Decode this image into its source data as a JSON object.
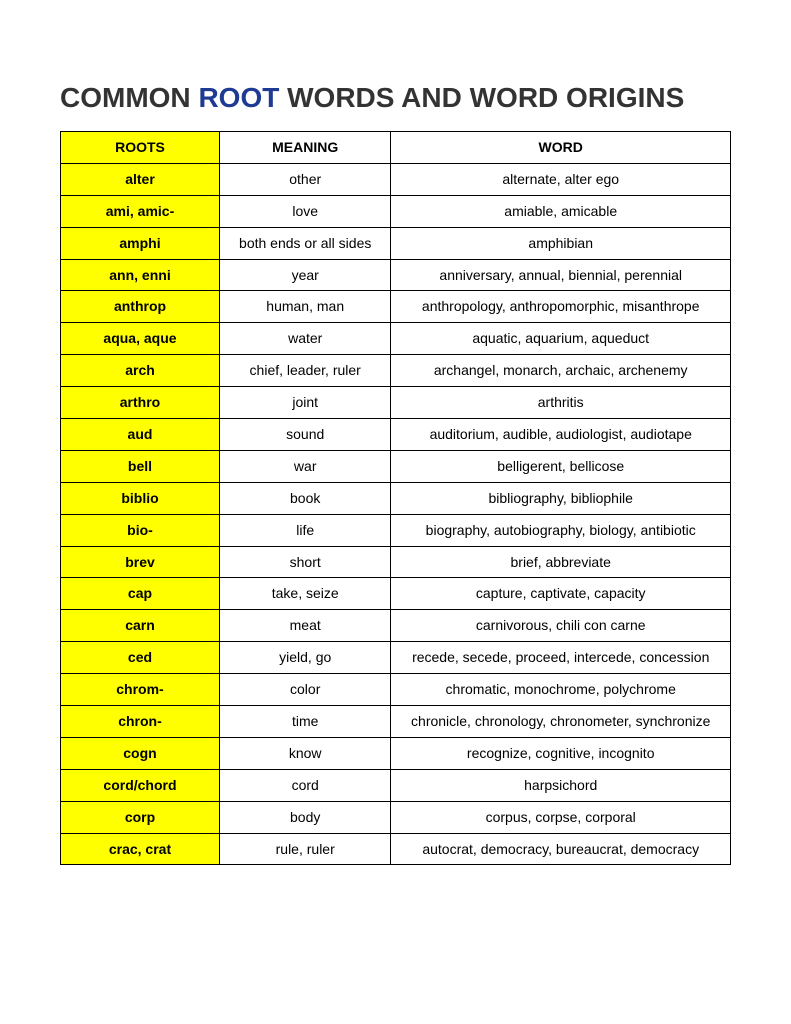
{
  "title": {
    "pre": "COMMON ",
    "accent": "ROOT",
    "post": " WORDS AND WORD ORIGINS"
  },
  "colors": {
    "highlight": "#ffff00",
    "accent_text": "#1f3a93",
    "border": "#000000",
    "bg": "#ffffff",
    "text": "#333333"
  },
  "columns": [
    "ROOTS",
    "MEANING",
    "WORD"
  ],
  "rows": [
    {
      "root": "alter",
      "meaning": "other",
      "word": "alternate, alter ego"
    },
    {
      "root": "ami, amic-",
      "meaning": "love",
      "word": "amiable, amicable"
    },
    {
      "root": "amphi",
      "meaning": "both ends or all sides",
      "word": "amphibian"
    },
    {
      "root": "ann, enni",
      "meaning": "year",
      "word": "anniversary, annual, biennial, perennial"
    },
    {
      "root": "anthrop",
      "meaning": "human, man",
      "word": "anthropology, anthropomorphic, misanthrope"
    },
    {
      "root": "aqua, aque",
      "meaning": "water",
      "word": "aquatic, aquarium, aqueduct"
    },
    {
      "root": "arch",
      "meaning": "chief, leader, ruler",
      "word": "archangel, monarch, archaic, archenemy"
    },
    {
      "root": "arthro",
      "meaning": "joint",
      "word": "arthritis"
    },
    {
      "root": "aud",
      "meaning": "sound",
      "word": "auditorium, audible, audiologist, audiotape"
    },
    {
      "root": "bell",
      "meaning": "war",
      "word": "belligerent, bellicose"
    },
    {
      "root": "biblio",
      "meaning": "book",
      "word": "bibliography, bibliophile"
    },
    {
      "root": "bio-",
      "meaning": "life",
      "word": "biography, autobiography, biology, antibiotic"
    },
    {
      "root": "brev",
      "meaning": "short",
      "word": "brief, abbreviate"
    },
    {
      "root": "cap",
      "meaning": "take, seize",
      "word": "capture, captivate, capacity"
    },
    {
      "root": "carn",
      "meaning": "meat",
      "word": "carnivorous, chili con carne"
    },
    {
      "root": "ced",
      "meaning": "yield, go",
      "word": "recede, secede, proceed, intercede, concession"
    },
    {
      "root": "chrom-",
      "meaning": "color",
      "word": "chromatic, monochrome, polychrome"
    },
    {
      "root": "chron-",
      "meaning": "time",
      "word": "chronicle, chronology, chronometer, synchronize"
    },
    {
      "root": "cogn",
      "meaning": "know",
      "word": "recognize, cognitive, incognito"
    },
    {
      "root": "cord/chord",
      "meaning": "cord",
      "word": "harpsichord"
    },
    {
      "root": "corp",
      "meaning": "body",
      "word": "corpus, corpse, corporal"
    },
    {
      "root": "crac, crat",
      "meaning": "rule, ruler",
      "word": "autocrat, democracy, bureaucrat, democracy"
    }
  ]
}
